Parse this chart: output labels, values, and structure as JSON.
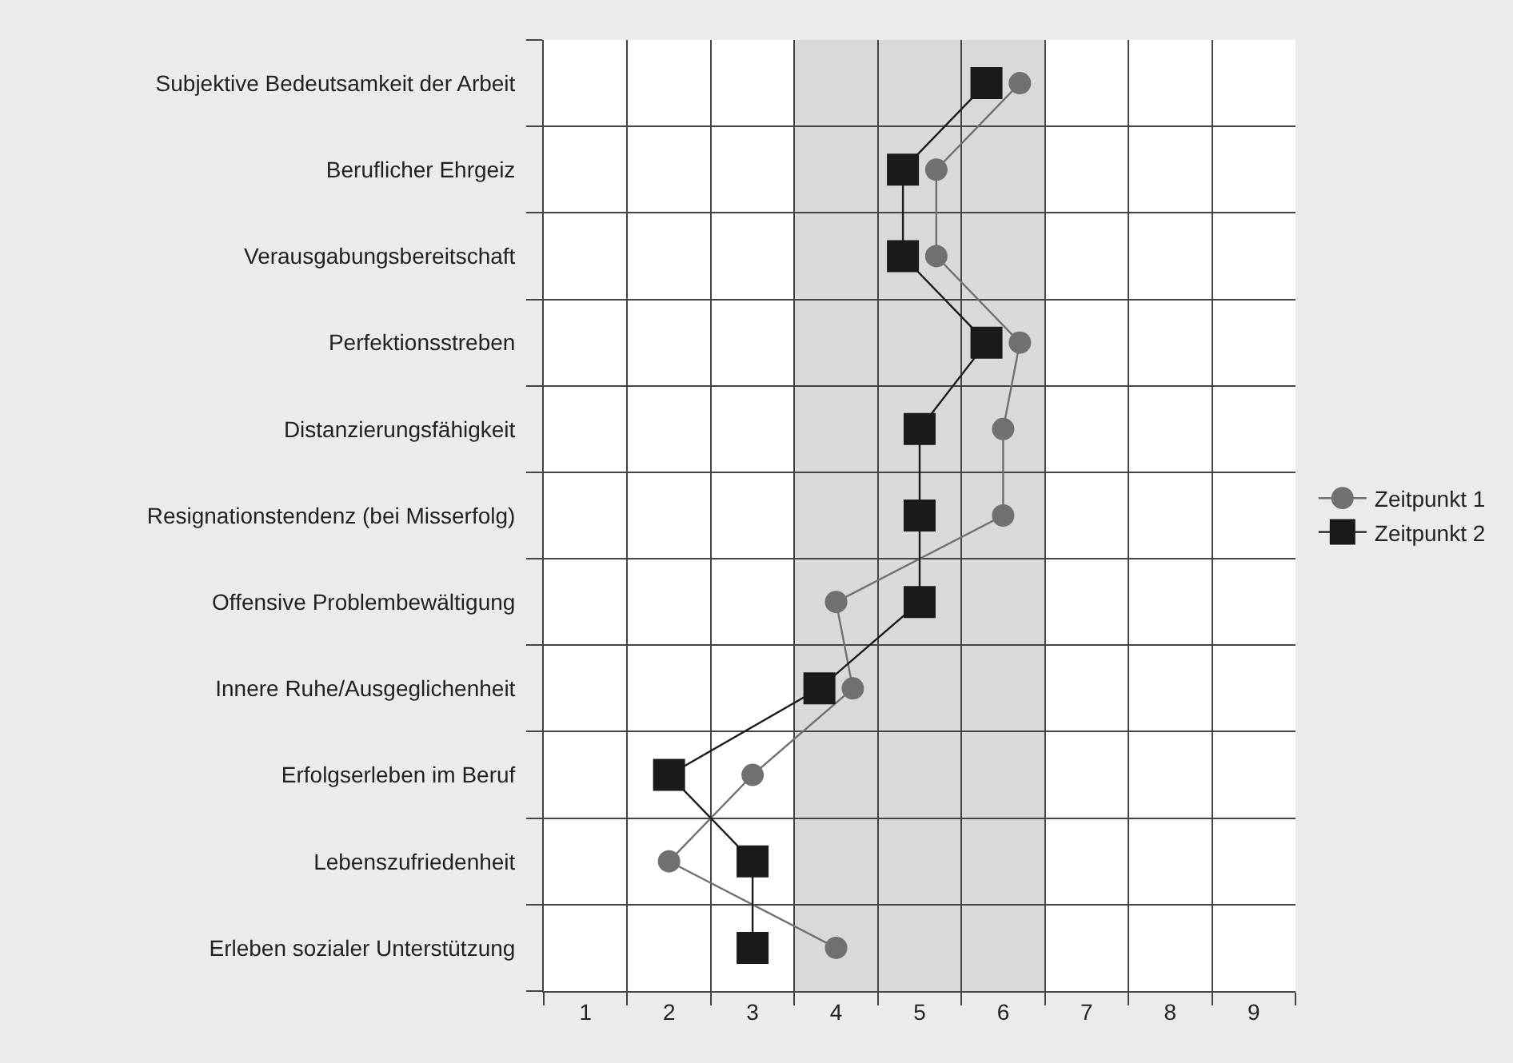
{
  "chart_data": {
    "type": "line",
    "orientation": "horizontal",
    "categories": [
      "Subjektive Bedeutsamkeit der Arbeit",
      "Beruflicher Ehrgeiz",
      "Verausgabungsbereitschaft",
      "Perfektionsstreben",
      "Distanzierungsfähigkeit",
      "Resignationstendenz (bei Misserfolg)",
      "Offensive Problembewältigung",
      "Innere Ruhe/Ausgeglichenheit",
      "Erfolgserleben im Beruf",
      "Lebenszufriedenheit",
      "Erleben sozialer Unterstützung"
    ],
    "series": [
      {
        "name": "Zeitpunkt 1",
        "color": "#707070",
        "marker": "circle",
        "values": [
          6.2,
          5.2,
          5.2,
          6.2,
          6.0,
          6.0,
          4.0,
          4.2,
          3.0,
          2.0,
          4.0
        ]
      },
      {
        "name": "Zeitpunkt 2",
        "color": "#1a1a1a",
        "marker": "square",
        "values": [
          5.8,
          4.8,
          4.8,
          5.8,
          5.0,
          5.0,
          5.0,
          3.8,
          2.0,
          3.0,
          3.0
        ]
      }
    ],
    "xlim": [
      0.5,
      9.5
    ],
    "xticks": [
      1,
      2,
      3,
      4,
      5,
      6,
      7,
      8,
      9
    ],
    "bands": [
      {
        "axis": "x",
        "from": 3.5,
        "to": 6.5,
        "color": "#d9d9d9"
      }
    ],
    "grid": true,
    "legend": "right",
    "line_style": "solid"
  }
}
